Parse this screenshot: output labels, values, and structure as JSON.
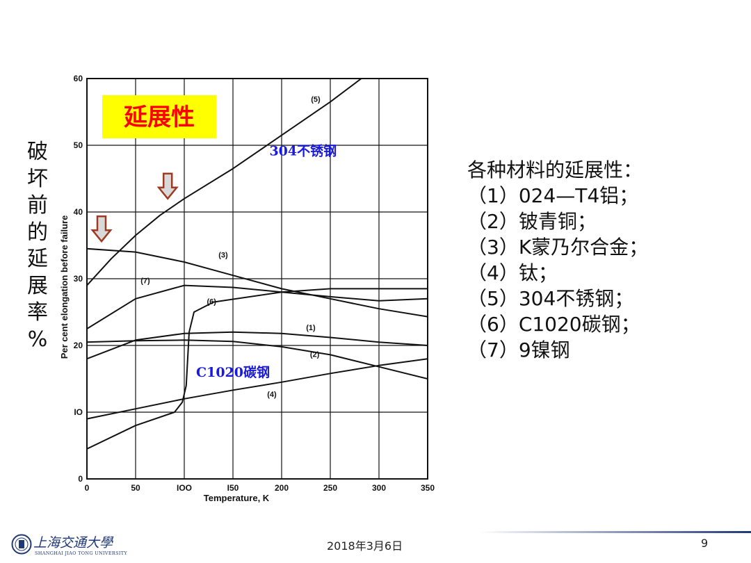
{
  "slide": {
    "vertical_label": [
      "破",
      "坏",
      "前",
      "的",
      "延",
      "展",
      "率",
      "%"
    ],
    "legend_title": "各种材料的延展性：",
    "legend_items": [
      "（1）024—T4铝；",
      "（2）铍青铜；",
      "（3）K蒙乃尔合金；",
      "（4）钛；",
      "（5）304不锈钢；",
      "（6）C1020碳钢；",
      "（7）9镍钢"
    ],
    "footer": {
      "date": "2018年3月6日",
      "page": "9",
      "logo_name": "上海交通大學",
      "logo_sub": "SHANGHAI JIAO TONG UNIVERSITY"
    }
  },
  "chart_data": {
    "type": "line",
    "title_box": "延展性",
    "title_box_color": "#ffff00",
    "title_text_color": "#ff0000",
    "ylabel": "Per cent elongation before failure",
    "xlabel": "Temperature, K",
    "xlim": [
      0,
      350
    ],
    "ylim": [
      0,
      60
    ],
    "x_ticks": [
      0,
      50,
      100,
      150,
      200,
      250,
      300,
      350
    ],
    "x_tick_labels": [
      "0",
      "50",
      "IOO",
      "I50",
      "200",
      "250",
      "300",
      "350"
    ],
    "y_ticks": [
      0,
      10,
      20,
      30,
      40,
      50,
      60
    ],
    "y_tick_labels": [
      "0",
      "IO",
      "20",
      "30",
      "40",
      "50",
      "60"
    ],
    "grid": true,
    "annotations": [
      {
        "text": "304不锈钢",
        "x": 222,
        "y": 48.5,
        "color": "#1a1adf"
      },
      {
        "text": "C1020碳钢",
        "x": 150,
        "y": 15.3,
        "color": "#1a1adf"
      }
    ],
    "arrows": [
      {
        "x": 15,
        "y": 35.6
      },
      {
        "x": 83,
        "y": 42
      }
    ],
    "series": [
      {
        "name": "(1)",
        "label_at": [
          230,
          22.3
        ],
        "x": [
          0,
          50,
          100,
          150,
          200,
          250,
          300,
          350
        ],
        "y": [
          18,
          20.8,
          21.8,
          22,
          21.8,
          21.2,
          20.5,
          20
        ]
      },
      {
        "name": "(2)",
        "label_at": [
          234,
          18.3
        ],
        "x": [
          0,
          50,
          100,
          150,
          200,
          250,
          300,
          350
        ],
        "y": [
          20.5,
          20.7,
          20.8,
          20.6,
          19.8,
          18.6,
          16.8,
          15
        ]
      },
      {
        "name": "(3)",
        "label_at": [
          140,
          33.2
        ],
        "x": [
          0,
          50,
          100,
          150,
          200,
          250,
          300,
          350
        ],
        "y": [
          34.5,
          34,
          32.5,
          30.5,
          28.5,
          27,
          25.5,
          24.3
        ]
      },
      {
        "name": "(4)",
        "label_at": [
          190,
          12.3
        ],
        "x": [
          0,
          50,
          100,
          150,
          200,
          250,
          300,
          350
        ],
        "y": [
          9,
          10.5,
          12,
          13.3,
          14.5,
          15.8,
          17,
          18
        ]
      },
      {
        "name": "(5)",
        "label_at": [
          235,
          56.5
        ],
        "x": [
          0,
          25,
          50,
          75,
          100,
          150,
          200,
          250,
          300
        ],
        "y": [
          29,
          33,
          36.5,
          39.5,
          42,
          46.5,
          51.5,
          56.5,
          62
        ]
      },
      {
        "name": "(6)",
        "label_at": [
          128,
          26.2
        ],
        "x": [
          0,
          50,
          90,
          98,
          102,
          105,
          110,
          130,
          200,
          250,
          300,
          350
        ],
        "y": [
          4.5,
          8,
          10,
          11.5,
          14,
          22,
          25,
          26.5,
          28,
          28.5,
          28.5,
          28.5
        ]
      },
      {
        "name": "(7)",
        "label_at": [
          60,
          29.3
        ],
        "x": [
          0,
          50,
          100,
          150,
          200,
          250,
          300,
          350
        ],
        "y": [
          22.5,
          27,
          29,
          28.7,
          28,
          27.3,
          26.7,
          27
        ]
      }
    ]
  }
}
